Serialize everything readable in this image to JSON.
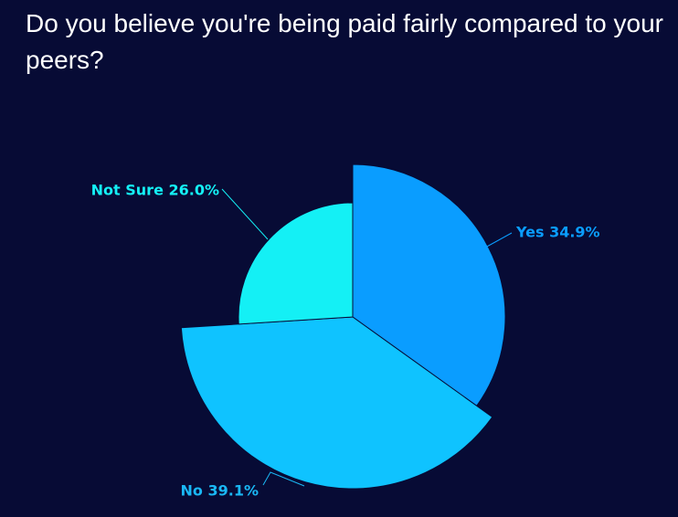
{
  "chart_data": {
    "type": "pie",
    "title": "Do you believe you're being paid fairly compared to your peers?",
    "slices": [
      {
        "label": "Yes",
        "value": 34.9,
        "display": "Yes 34.9%",
        "color": "#0a9dff",
        "text_color": "#0a9dff"
      },
      {
        "label": "No",
        "value": 39.1,
        "display": "No 39.1%",
        "color": "#0fc3ff",
        "text_color": "#1ab8f5"
      },
      {
        "label": "Not Sure",
        "value": 26.0,
        "display": "Not Sure 26.0%",
        "color": "#14f0f5",
        "text_color": "#14f0f5"
      }
    ]
  }
}
